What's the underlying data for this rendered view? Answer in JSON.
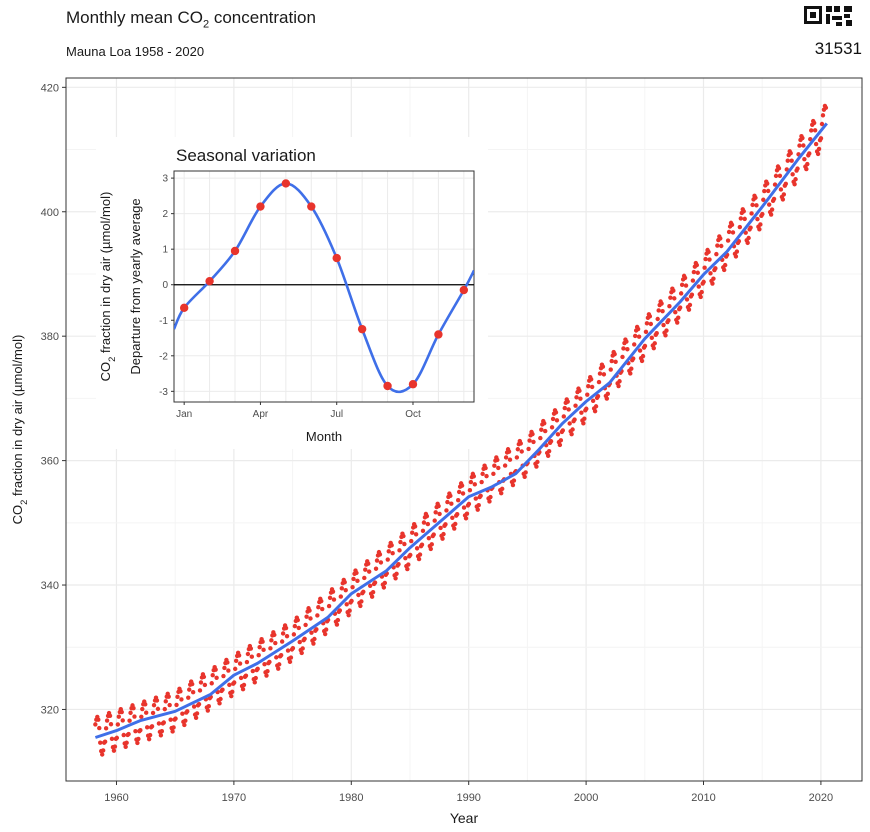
{
  "title_prefix": "Monthly mean CO",
  "title_sub": "2",
  "title_suffix": " concentration",
  "subtitle": "Mauna Loa 1958 - 2020",
  "badge": {
    "icon": "qr-code-icon",
    "number": "31531"
  },
  "colors": {
    "points": "#e8342c",
    "trend": "#3f6fe8",
    "grid": "#ebebeb",
    "panel_border": "#333333"
  },
  "chart_data": [
    {
      "type": "scatter",
      "title": "",
      "xlabel": "Year",
      "ylabel_main": "CO",
      "ylabel_sub": "2",
      "ylabel_rest": " fraction in dry air (µmol/mol)",
      "xlim": [
        1955.7,
        2023.5
      ],
      "ylim": [
        308.5,
        421.5
      ],
      "x_ticks": [
        1960,
        1970,
        1980,
        1990,
        2000,
        2010,
        2020
      ],
      "y_ticks": [
        320,
        340,
        360,
        380,
        400,
        420
      ],
      "grid": true,
      "series": [
        {
          "kind": "points",
          "x_start": 1958.2,
          "x_end": 2020.5,
          "step_years": 0.0833,
          "trend_knots": [
            [
              1958.2,
              315.5
            ],
            [
              1965,
              319.7
            ],
            [
              1970,
              325.5
            ],
            [
              1975,
              331.0
            ],
            [
              1980,
              338.6
            ],
            [
              1985,
              346.0
            ],
            [
              1990,
              354.2
            ],
            [
              1995,
              360.8
            ],
            [
              2000,
              369.5
            ],
            [
              2005,
              379.6
            ],
            [
              2010,
              389.9
            ],
            [
              2015,
              400.8
            ],
            [
              2020.5,
              414.2
            ]
          ],
          "seasonal_amplitude": [
            -1.2,
            0.9,
            2.1,
            2.8,
            3.2,
            2.7,
            1.3,
            -1.1,
            -2.5,
            -3.1,
            -2.5,
            -1.3
          ]
        },
        {
          "kind": "line",
          "x": [
            1958.2,
            1960,
            1962,
            1965,
            1968,
            1970,
            1972,
            1975,
            1978,
            1980,
            1983,
            1985,
            1988,
            1990,
            1992,
            1994,
            1996,
            1998,
            2000,
            2002,
            2005,
            2008,
            2010,
            2012,
            2015,
            2018,
            2020.5
          ],
          "y": [
            315.5,
            316.6,
            318.2,
            319.7,
            322.4,
            325.5,
            327.4,
            331.0,
            334.8,
            338.6,
            342.3,
            346.0,
            350.9,
            354.2,
            355.8,
            357.9,
            361.8,
            366.0,
            369.5,
            372.5,
            379.6,
            385.5,
            389.9,
            393.6,
            400.8,
            408.3,
            414.2
          ]
        }
      ]
    },
    {
      "type": "line",
      "title": "Seasonal variation",
      "xlabel": "Month",
      "ylabel_line1_main": "CO",
      "ylabel_line1_sub": "2",
      "ylabel_line1_rest": " fraction in dry air (µmol/mol)",
      "ylabel_line2": "Departure from yearly average",
      "xlim": [
        0.6,
        12.4
      ],
      "ylim": [
        -3.3,
        3.2
      ],
      "x_ticks": [
        1,
        4,
        7,
        10
      ],
      "x_tick_labels": [
        "Jan",
        "Apr",
        "Jul",
        "Oct"
      ],
      "y_ticks": [
        -3,
        -2,
        -1,
        0,
        1,
        2,
        3
      ],
      "reference_line": 0,
      "months": [
        1,
        2,
        3,
        4,
        5,
        6,
        7,
        8,
        9,
        10,
        11,
        12
      ],
      "values": [
        -0.65,
        0.1,
        0.95,
        2.2,
        2.85,
        2.2,
        0.75,
        -1.25,
        -2.85,
        -2.8,
        -1.4,
        -0.15
      ]
    }
  ]
}
